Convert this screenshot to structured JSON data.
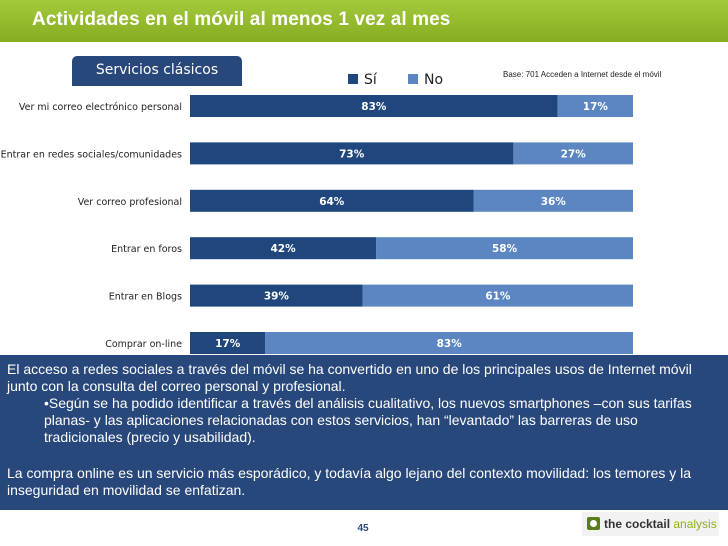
{
  "header": {
    "title": "Actividades en el móvil al menos 1 vez al mes"
  },
  "section_tab": {
    "label": "Servicios clásicos"
  },
  "base_note": "Base: 701 Acceden a Internet desde el móvil",
  "chart_data": {
    "type": "bar",
    "orientation": "horizontal",
    "stacked": true,
    "percent": true,
    "categories": [
      "Ver mi correo electrónico personal",
      "Entrar en redes sociales/comunidades",
      "Ver correo profesional",
      "Entrar en foros",
      "Entrar en Blogs",
      "Comprar on-line"
    ],
    "series": [
      {
        "name": "Sí",
        "color": "#1f477d",
        "values": [
          83,
          73,
          64,
          42,
          39,
          17
        ],
        "labels": [
          "83%",
          "73%",
          "64%",
          "42%",
          "39%",
          "17%"
        ]
      },
      {
        "name": "No",
        "color": "#5b86c2",
        "values": [
          17,
          27,
          36,
          58,
          61,
          83
        ],
        "labels": [
          "17%",
          "27%",
          "36%",
          "58%",
          "61%",
          "83%"
        ]
      }
    ],
    "xlim": [
      0,
      100
    ],
    "legend": "top",
    "title": "Servicios clásicos"
  },
  "summary": {
    "paragraph1": "El acceso a redes sociales a través del móvil se ha convertido en uno de los principales usos de Internet móvil junto con la consulta del correo personal y profesional.",
    "bullet": "•Según se ha podido identificar a través del análisis cualitativo, los nuevos smartphones –con sus tarifas planas- y las aplicaciones relacionadas con estos servicios, han “levantado” las barreras de uso tradicionales (precio y usabilidad).",
    "paragraph2": "La compra online es un servicio más esporádico, y todavía algo lejano del contexto movilidad: los temores y la inseguridad en movilidad se enfatizan."
  },
  "footer": {
    "page_number": "45",
    "brand_prefix": "the cocktail",
    "brand_suffix": " analysis"
  }
}
